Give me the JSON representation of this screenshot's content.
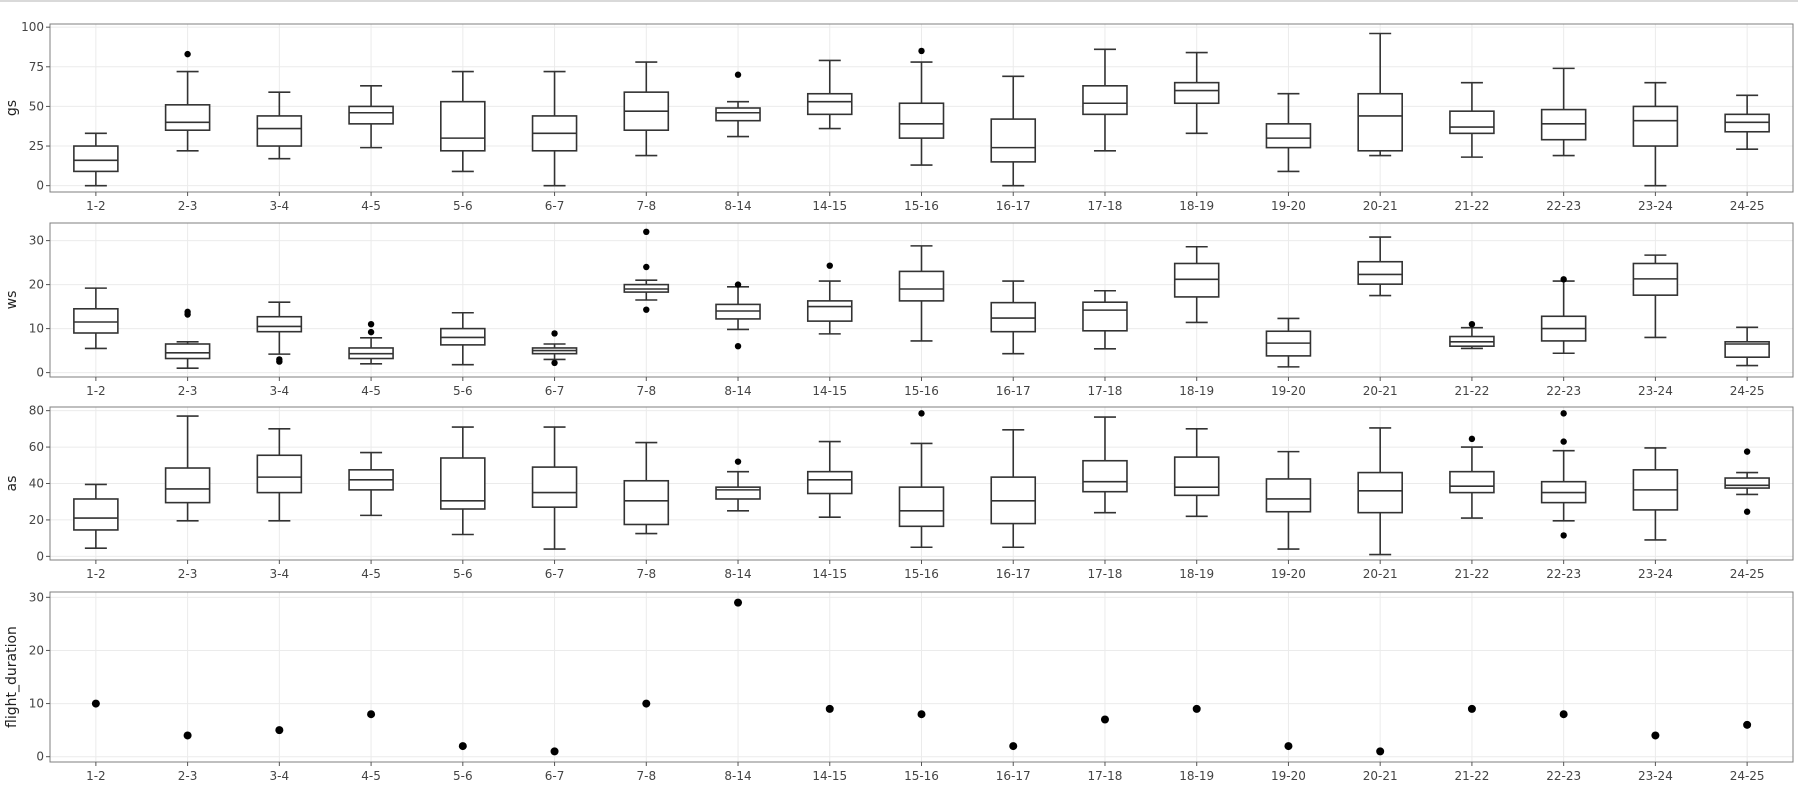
{
  "chart_data": [
    {
      "type": "box",
      "ylabel": "gs",
      "ylim": [
        -4,
        102
      ],
      "yticks": [
        0,
        25,
        50,
        75,
        100
      ],
      "categories": [
        "1-2",
        "2-3",
        "3-4",
        "4-5",
        "5-6",
        "6-7",
        "7-8",
        "8-14",
        "14-15",
        "15-16",
        "16-17",
        "17-18",
        "18-19",
        "19-20",
        "20-21",
        "21-22",
        "22-23",
        "23-24",
        "24-25"
      ],
      "boxes": [
        {
          "min": 0,
          "q1": 9,
          "median": 16,
          "q3": 25,
          "max": 33,
          "outliers": []
        },
        {
          "min": 22,
          "q1": 35,
          "median": 40,
          "q3": 51,
          "max": 72,
          "outliers": [
            83
          ]
        },
        {
          "min": 17,
          "q1": 25,
          "median": 36,
          "q3": 44,
          "max": 59,
          "outliers": []
        },
        {
          "min": 24,
          "q1": 39,
          "median": 46,
          "q3": 50,
          "max": 63,
          "outliers": []
        },
        {
          "min": 9,
          "q1": 22,
          "median": 30,
          "q3": 53,
          "max": 72,
          "outliers": []
        },
        {
          "min": 0,
          "q1": 22,
          "median": 33,
          "q3": 44,
          "max": 72,
          "outliers": []
        },
        {
          "min": 19,
          "q1": 35,
          "median": 47,
          "q3": 59,
          "max": 78,
          "outliers": []
        },
        {
          "min": 31,
          "q1": 41,
          "median": 46,
          "q3": 49,
          "max": 53,
          "outliers": [
            70
          ]
        },
        {
          "min": 36,
          "q1": 45,
          "median": 53,
          "q3": 58,
          "max": 79,
          "outliers": []
        },
        {
          "min": 13,
          "q1": 30,
          "median": 39,
          "q3": 52,
          "max": 78,
          "outliers": [
            85
          ]
        },
        {
          "min": 0,
          "q1": 15,
          "median": 24,
          "q3": 42,
          "max": 69,
          "outliers": []
        },
        {
          "min": 22,
          "q1": 45,
          "median": 52,
          "q3": 63,
          "max": 86,
          "outliers": []
        },
        {
          "min": 33,
          "q1": 52,
          "median": 60,
          "q3": 65,
          "max": 84,
          "outliers": []
        },
        {
          "min": 9,
          "q1": 24,
          "median": 30,
          "q3": 39,
          "max": 58,
          "outliers": []
        },
        {
          "min": 19,
          "q1": 22,
          "median": 44,
          "q3": 58,
          "max": 96,
          "outliers": []
        },
        {
          "min": 18,
          "q1": 33,
          "median": 37,
          "q3": 47,
          "max": 65,
          "outliers": []
        },
        {
          "min": 19,
          "q1": 29,
          "median": 39,
          "q3": 48,
          "max": 74,
          "outliers": []
        },
        {
          "min": 0,
          "q1": 25,
          "median": 41,
          "q3": 50,
          "max": 65,
          "outliers": []
        },
        {
          "min": 23,
          "q1": 34,
          "median": 40,
          "q3": 45,
          "max": 57,
          "outliers": []
        }
      ]
    },
    {
      "type": "box",
      "ylabel": "ws",
      "ylim": [
        -1,
        34
      ],
      "yticks": [
        0,
        10,
        20,
        30
      ],
      "categories": [
        "1-2",
        "2-3",
        "3-4",
        "4-5",
        "5-6",
        "6-7",
        "7-8",
        "8-14",
        "14-15",
        "15-16",
        "16-17",
        "17-18",
        "18-19",
        "19-20",
        "20-21",
        "21-22",
        "22-23",
        "23-24",
        "24-25"
      ],
      "boxes": [
        {
          "min": 5.5,
          "q1": 9,
          "median": 11.5,
          "q3": 14.5,
          "max": 19.2,
          "outliers": []
        },
        {
          "min": 1,
          "q1": 3.2,
          "median": 4.5,
          "q3": 6.5,
          "max": 7,
          "outliers": [
            13.2,
            13.8
          ]
        },
        {
          "min": 4.2,
          "q1": 9.3,
          "median": 10.5,
          "q3": 12.7,
          "max": 16,
          "outliers": [
            3,
            2.5
          ]
        },
        {
          "min": 2,
          "q1": 3.2,
          "median": 4.3,
          "q3": 5.6,
          "max": 7.9,
          "outliers": [
            9.2,
            11
          ]
        },
        {
          "min": 1.8,
          "q1": 6.3,
          "median": 8,
          "q3": 10,
          "max": 13.6,
          "outliers": []
        },
        {
          "min": 3,
          "q1": 4.3,
          "median": 5,
          "q3": 5.6,
          "max": 6.5,
          "outliers": [
            2.2,
            8.9
          ]
        },
        {
          "min": 16.5,
          "q1": 18.3,
          "median": 19,
          "q3": 20,
          "max": 21,
          "outliers": [
            14.3,
            24,
            32
          ]
        },
        {
          "min": 9.8,
          "q1": 12.2,
          "median": 14,
          "q3": 15.5,
          "max": 19.5,
          "outliers": [
            6,
            20
          ]
        },
        {
          "min": 8.8,
          "q1": 11.7,
          "median": 15,
          "q3": 16.3,
          "max": 20.8,
          "outliers": [
            24.3
          ]
        },
        {
          "min": 7.2,
          "q1": 16.3,
          "median": 19,
          "q3": 23,
          "max": 28.8,
          "outliers": []
        },
        {
          "min": 4.3,
          "q1": 9.3,
          "median": 12.4,
          "q3": 15.9,
          "max": 20.8,
          "outliers": []
        },
        {
          "min": 5.4,
          "q1": 9.5,
          "median": 14.2,
          "q3": 16,
          "max": 18.6,
          "outliers": []
        },
        {
          "min": 11.4,
          "q1": 17.2,
          "median": 21.2,
          "q3": 24.8,
          "max": 28.6,
          "outliers": []
        },
        {
          "min": 1.3,
          "q1": 3.8,
          "median": 6.7,
          "q3": 9.4,
          "max": 12.3,
          "outliers": []
        },
        {
          "min": 17.5,
          "q1": 20.1,
          "median": 22.3,
          "q3": 25.2,
          "max": 30.8,
          "outliers": []
        },
        {
          "min": 5.5,
          "q1": 6,
          "median": 7,
          "q3": 8.2,
          "max": 10.2,
          "outliers": [
            11
          ]
        },
        {
          "min": 4.4,
          "q1": 7.2,
          "median": 10,
          "q3": 12.8,
          "max": 20.8,
          "outliers": [
            21.2
          ]
        },
        {
          "min": 8,
          "q1": 17.6,
          "median": 21.3,
          "q3": 24.8,
          "max": 26.7,
          "outliers": []
        },
        {
          "min": 1.6,
          "q1": 3.5,
          "median": 6.5,
          "q3": 7,
          "max": 10.3,
          "outliers": []
        }
      ]
    },
    {
      "type": "box",
      "ylabel": "as",
      "ylim": [
        -2,
        82
      ],
      "yticks": [
        0,
        20,
        40,
        60,
        80
      ],
      "categories": [
        "1-2",
        "2-3",
        "3-4",
        "4-5",
        "5-6",
        "6-7",
        "7-8",
        "8-14",
        "14-15",
        "15-16",
        "16-17",
        "17-18",
        "18-19",
        "19-20",
        "20-21",
        "21-22",
        "22-23",
        "23-24",
        "24-25"
      ],
      "boxes": [
        {
          "min": 4.5,
          "q1": 14.5,
          "median": 21,
          "q3": 31.5,
          "max": 39.5,
          "outliers": []
        },
        {
          "min": 19.5,
          "q1": 29.5,
          "median": 37,
          "q3": 48.5,
          "max": 77,
          "outliers": []
        },
        {
          "min": 19.5,
          "q1": 35,
          "median": 43.5,
          "q3": 55.5,
          "max": 70,
          "outliers": []
        },
        {
          "min": 22.5,
          "q1": 36.5,
          "median": 42,
          "q3": 47.5,
          "max": 57,
          "outliers": []
        },
        {
          "min": 12,
          "q1": 26,
          "median": 30.5,
          "q3": 54,
          "max": 71,
          "outliers": []
        },
        {
          "min": 4,
          "q1": 27,
          "median": 35,
          "q3": 49,
          "max": 71,
          "outliers": []
        },
        {
          "min": 12.5,
          "q1": 17.5,
          "median": 30.5,
          "q3": 41.5,
          "max": 62.5,
          "outliers": []
        },
        {
          "min": 25,
          "q1": 31.5,
          "median": 36.5,
          "q3": 38,
          "max": 46.5,
          "outliers": [
            52
          ]
        },
        {
          "min": 21.5,
          "q1": 34.5,
          "median": 42,
          "q3": 46.5,
          "max": 63,
          "outliers": []
        },
        {
          "min": 5,
          "q1": 16.5,
          "median": 25,
          "q3": 38,
          "max": 62,
          "outliers": [
            78.5
          ]
        },
        {
          "min": 5,
          "q1": 18,
          "median": 30.5,
          "q3": 43.5,
          "max": 69.5,
          "outliers": []
        },
        {
          "min": 24,
          "q1": 35.5,
          "median": 41,
          "q3": 52.5,
          "max": 76.5,
          "outliers": []
        },
        {
          "min": 22,
          "q1": 33.5,
          "median": 38,
          "q3": 54.5,
          "max": 70,
          "outliers": []
        },
        {
          "min": 4,
          "q1": 24.5,
          "median": 31.5,
          "q3": 42.5,
          "max": 57.5,
          "outliers": []
        },
        {
          "min": 1,
          "q1": 24,
          "median": 36,
          "q3": 46,
          "max": 70.5,
          "outliers": []
        },
        {
          "min": 21,
          "q1": 35,
          "median": 38.5,
          "q3": 46.5,
          "max": 60,
          "outliers": [
            64.5
          ]
        },
        {
          "min": 19.5,
          "q1": 29.5,
          "median": 35,
          "q3": 41,
          "max": 58,
          "outliers": [
            63,
            78.5,
            11.5
          ]
        },
        {
          "min": 9,
          "q1": 25.5,
          "median": 36.5,
          "q3": 47.5,
          "max": 59.5,
          "outliers": []
        },
        {
          "min": 34,
          "q1": 37.5,
          "median": 39,
          "q3": 43,
          "max": 46,
          "outliers": [
            57.5,
            24.5
          ]
        }
      ]
    },
    {
      "type": "scatter",
      "ylabel": "flight_duration",
      "ylim": [
        -1,
        31
      ],
      "yticks": [
        0,
        10,
        20,
        30
      ],
      "categories": [
        "1-2",
        "2-3",
        "3-4",
        "4-5",
        "5-6",
        "6-7",
        "7-8",
        "8-14",
        "14-15",
        "15-16",
        "16-17",
        "17-18",
        "18-19",
        "19-20",
        "20-21",
        "21-22",
        "22-23",
        "23-24",
        "24-25"
      ],
      "values": [
        10,
        4,
        5,
        8,
        2,
        1,
        10,
        29,
        9,
        8,
        2,
        7,
        9,
        2,
        1,
        9,
        8,
        4,
        6
      ]
    }
  ]
}
